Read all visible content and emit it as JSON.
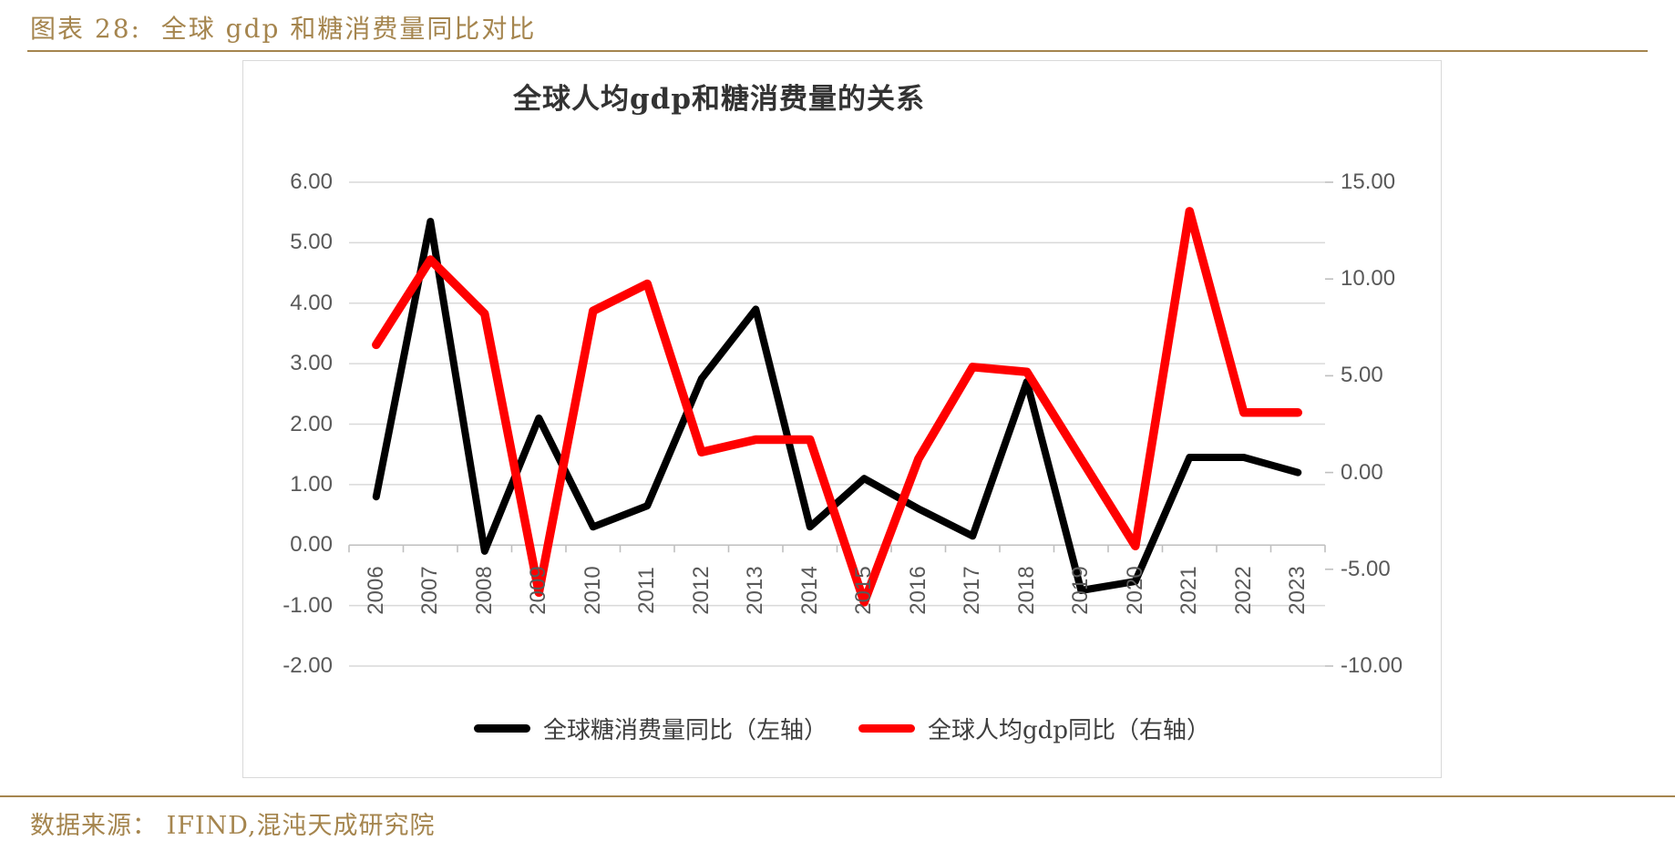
{
  "page": {
    "header_label": "图表 28:  全球 gdp 和糖消费量同比对比",
    "footer_label": "数据来源： IFIND,混沌天成研究院",
    "accent_color": "#a5854e"
  },
  "chart_data": {
    "type": "line",
    "title": "全球人均gdp和糖消费量的关系",
    "categories": [
      "2006",
      "2007",
      "2008",
      "2009",
      "2010",
      "2011",
      "2012",
      "2013",
      "2014",
      "2015",
      "2016",
      "2017",
      "2018",
      "2019",
      "2020",
      "2021",
      "2022",
      "2023"
    ],
    "series": [
      {
        "name": "全球糖消费量同比（左轴）",
        "axis": "left",
        "color": "#000000",
        "stroke_width": 8,
        "values": [
          0.8,
          5.35,
          -0.1,
          2.1,
          0.3,
          0.65,
          2.75,
          3.9,
          0.3,
          1.1,
          0.6,
          0.15,
          2.7,
          -0.75,
          -0.6,
          1.45,
          1.45,
          1.2
        ]
      },
      {
        "name": "全球人均gdp同比（右轴）",
        "axis": "right",
        "color": "#ff0000",
        "stroke_width": 9.5,
        "values": [
          6.6,
          11.0,
          8.2,
          -6.2,
          8.35,
          9.75,
          1.05,
          1.7,
          1.7,
          -6.7,
          0.7,
          5.45,
          5.2,
          0.7,
          -3.8,
          13.5,
          3.1,
          3.1
        ]
      }
    ],
    "left_axis": {
      "max": 6,
      "min": -2,
      "step": 1,
      "decimals": 2
    },
    "right_axis": {
      "max": 15,
      "min": -10,
      "step": 5,
      "decimals": 2
    },
    "grid": true,
    "legend_position": "bottom",
    "colors": {
      "gridline": "#d9d9d9",
      "axis_line": "#bfbfbf",
      "tick_label": "#595959",
      "title": "#333333",
      "legend_text": "#3f3f3f"
    }
  }
}
